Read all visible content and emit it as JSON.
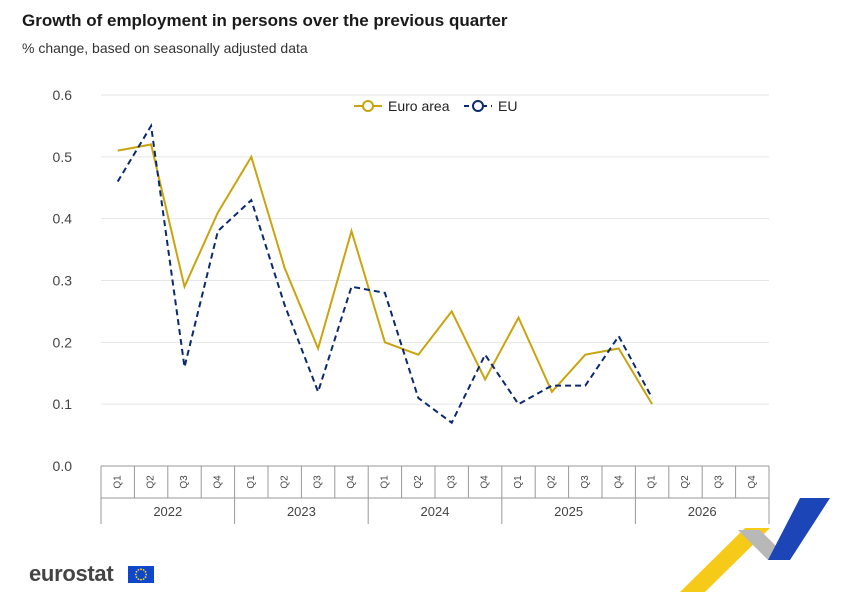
{
  "header": {
    "title": "Growth of employment in persons over the previous quarter",
    "subtitle": "% change, based on seasonally adjusted data"
  },
  "brand": {
    "logo_text": "eurostat",
    "flag_icon": "eu-flag-icon"
  },
  "colors": {
    "euro_area": "#c9a40f",
    "eu": "#0b2a6e",
    "grid": "#e6e6e6",
    "axis": "#999999"
  },
  "chart_data": {
    "type": "line",
    "title": "Growth of employment in persons over the previous quarter",
    "subtitle": "% change, based on seasonally adjusted data",
    "xlabel": "",
    "ylabel": "",
    "ylim": [
      0,
      0.6
    ],
    "yticks": [
      "0.0",
      "0.1",
      "0.2",
      "0.3",
      "0.4",
      "0.5",
      "0.6"
    ],
    "grid": true,
    "legend_position": "top-center",
    "categories": [
      "Q1",
      "Q2",
      "Q3",
      "Q4",
      "Q1",
      "Q2",
      "Q3",
      "Q4",
      "Q1",
      "Q2",
      "Q3",
      "Q4",
      "Q1",
      "Q2",
      "Q3",
      "Q4",
      "Q1",
      "Q2",
      "Q3",
      "Q4"
    ],
    "years": [
      "2022",
      "2023",
      "2024",
      "2025",
      "2026"
    ],
    "series": [
      {
        "name": "Euro area",
        "style": "solid",
        "marker": "circle",
        "values": [
          0.51,
          0.52,
          0.29,
          0.41,
          0.5,
          0.32,
          0.19,
          0.38,
          0.2,
          0.18,
          0.25,
          0.14,
          0.24,
          0.12,
          0.18,
          0.19,
          0.1,
          null,
          null,
          null
        ]
      },
      {
        "name": "EU",
        "style": "dashed",
        "marker": "circle",
        "values": [
          0.46,
          0.55,
          0.16,
          0.38,
          0.43,
          0.26,
          0.12,
          0.29,
          0.28,
          0.11,
          0.07,
          0.18,
          0.1,
          0.13,
          0.13,
          0.21,
          0.11,
          null,
          null,
          null
        ]
      }
    ]
  }
}
